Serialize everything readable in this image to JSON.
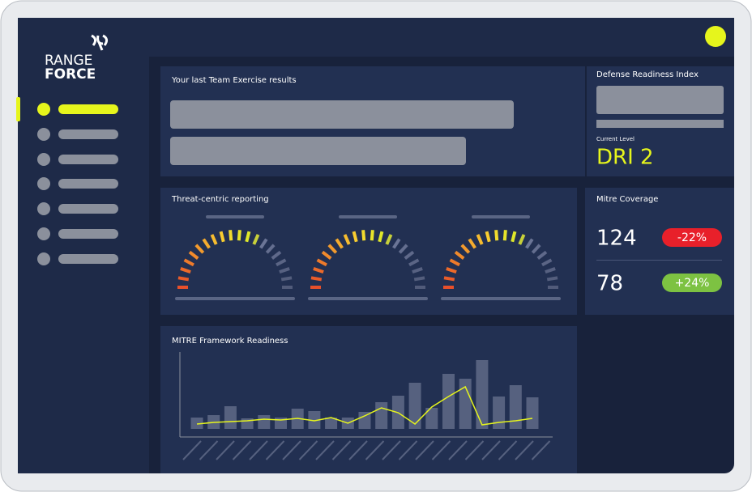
{
  "logo": {
    "line1": "RANGE",
    "line2": "FORCE"
  },
  "exercise": {
    "title": "Your last Team Exercise results"
  },
  "dri": {
    "title": "Defense Readiness Index",
    "level_label": "Current Level",
    "level": "DRI 2"
  },
  "threat": {
    "title": "Threat-centric reporting"
  },
  "mitre_coverage": {
    "title": "Mitre Coverage",
    "rows": [
      {
        "value": "124",
        "change": "-22%"
      },
      {
        "value": "78",
        "change": "+24%"
      }
    ]
  },
  "framework": {
    "title": "MITRE Framework Readiness",
    "chart": {
      "type": "bar",
      "bars": [
        14,
        17,
        28,
        13,
        17,
        14,
        25,
        22,
        14,
        14,
        21,
        33,
        41,
        57,
        26,
        68,
        62,
        85,
        40,
        54,
        39
      ],
      "line": [
        6,
        8,
        9,
        10,
        12,
        11,
        13,
        10,
        14,
        7,
        16,
        26,
        20,
        6,
        27,
        40,
        52,
        5,
        8,
        10,
        13
      ]
    }
  }
}
